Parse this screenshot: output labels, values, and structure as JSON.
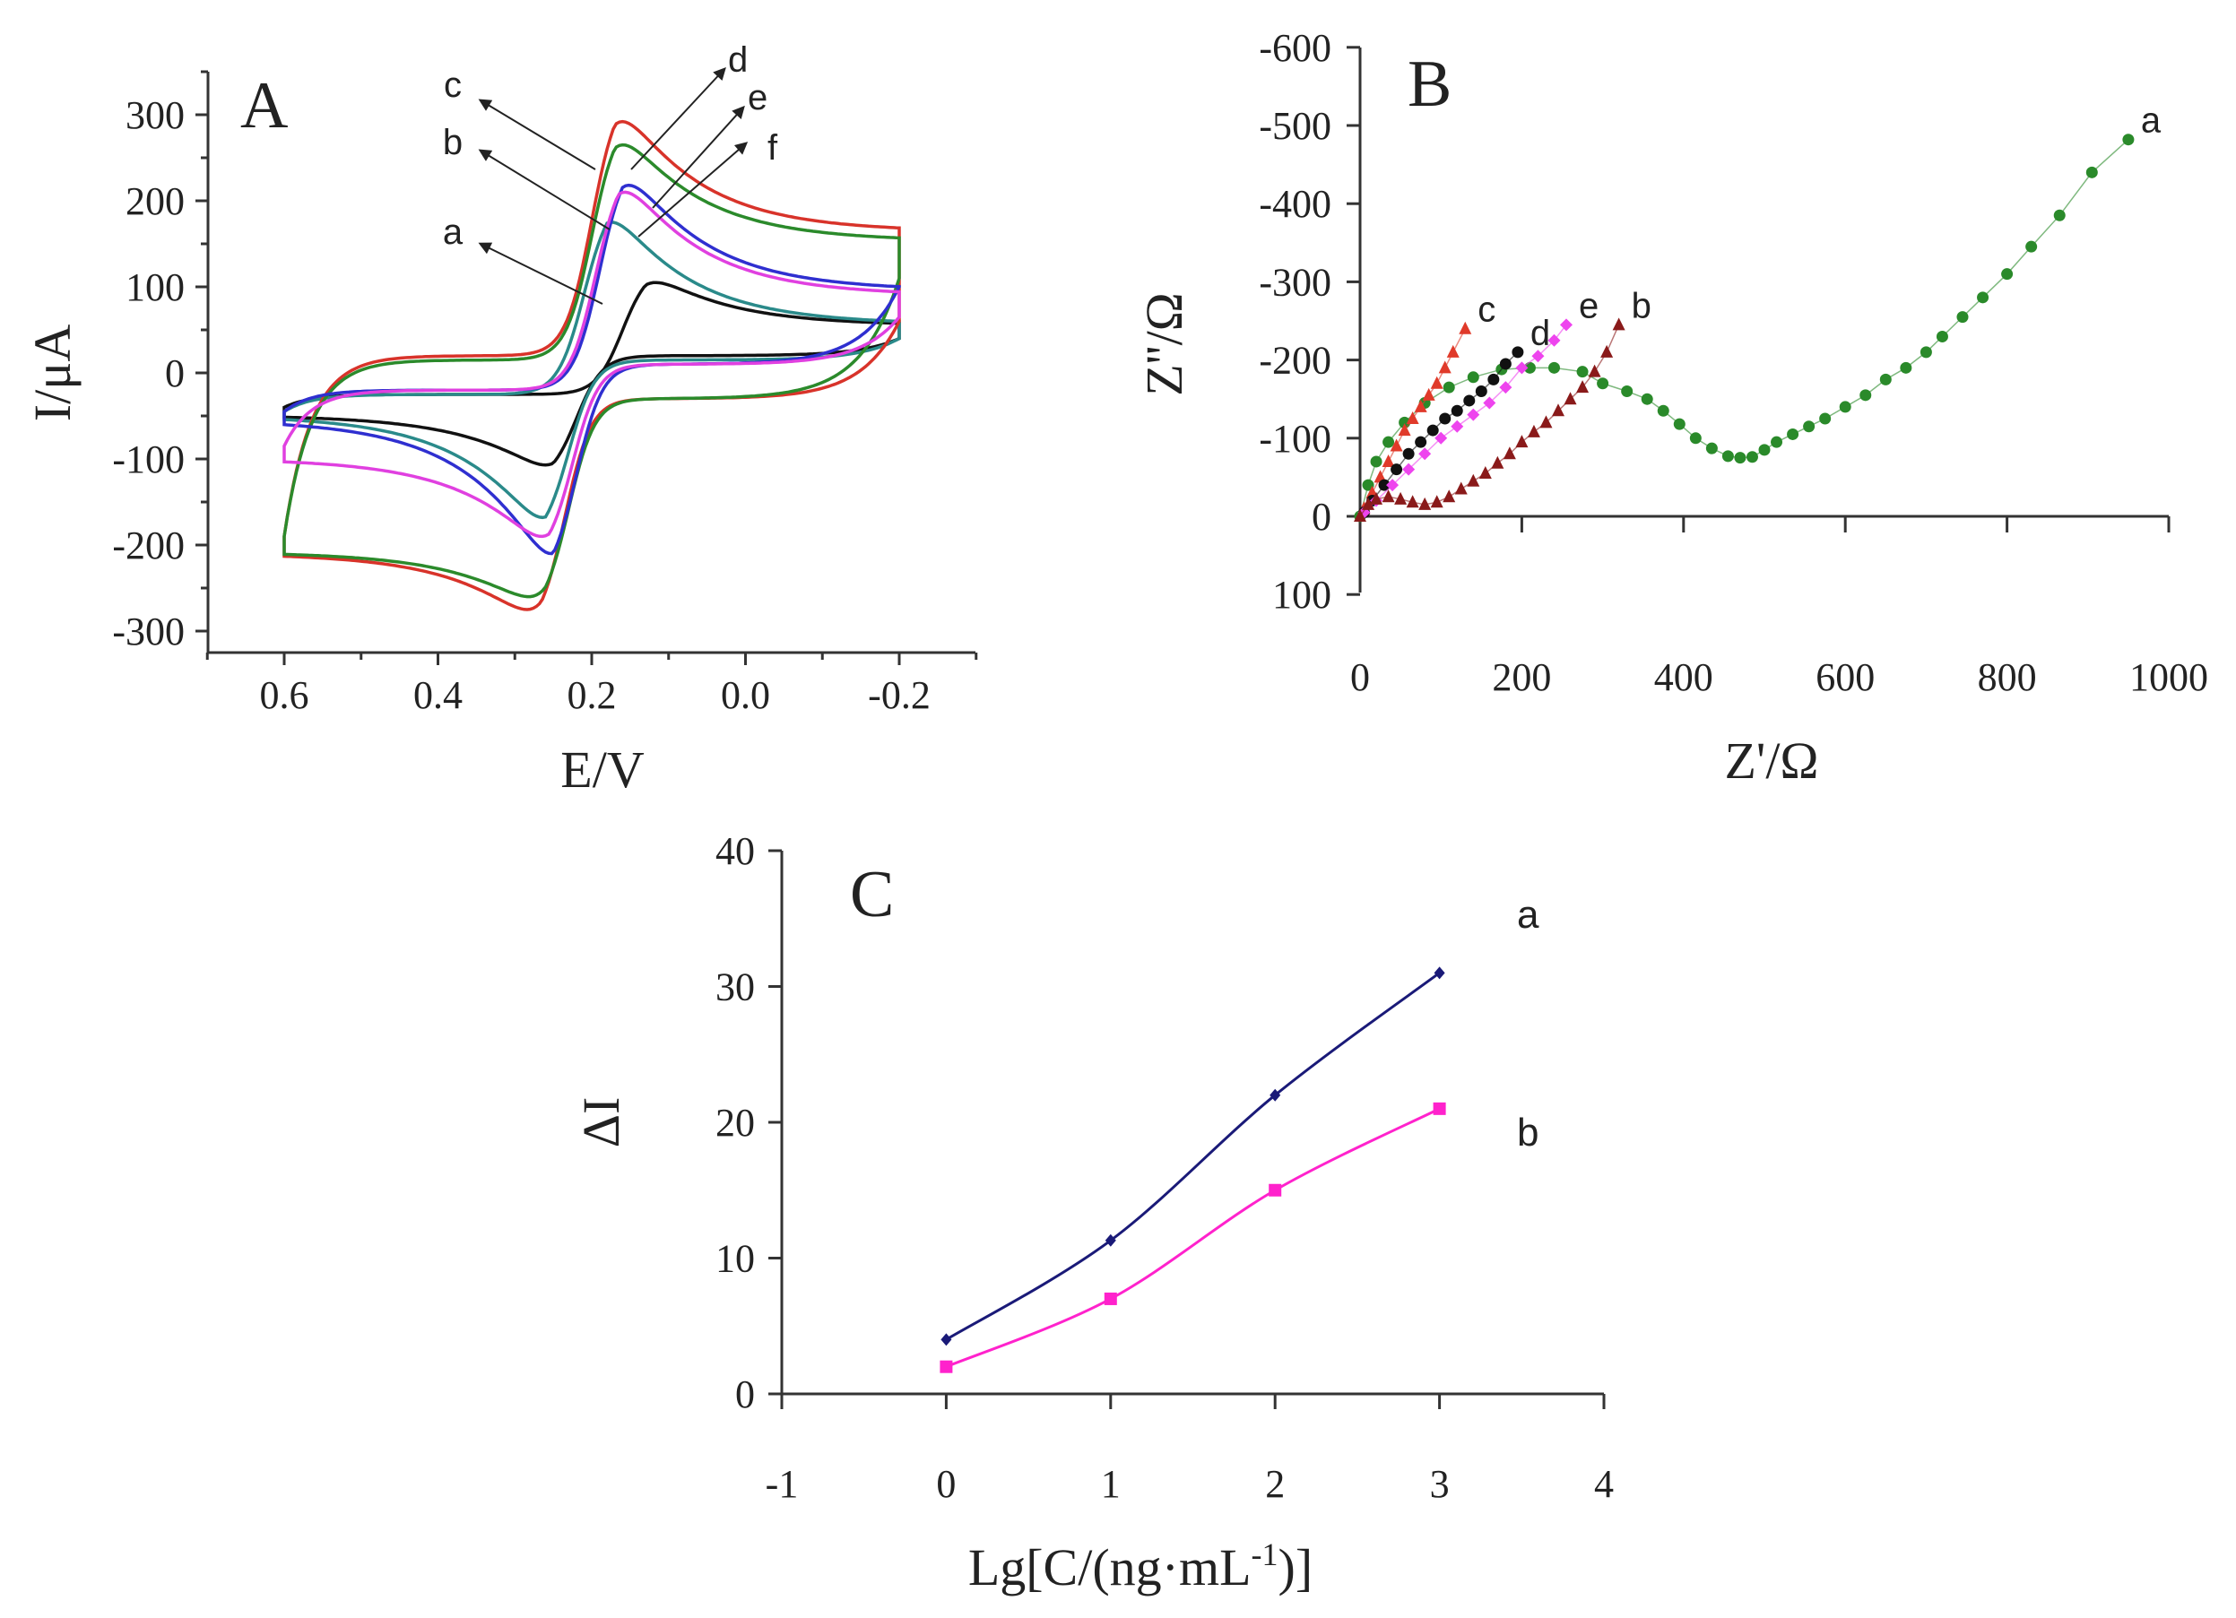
{
  "chart_data": [
    {
      "type": "line",
      "panel_label": "A",
      "title": "",
      "xlabel": "E/V",
      "ylabel": "I/μA",
      "xlim": [
        0.7,
        -0.3
      ],
      "ylim": [
        -325,
        350
      ],
      "xticks": [
        0.6,
        0.4,
        0.2,
        0.0,
        -0.2
      ],
      "xtick_labels": [
        "0.6",
        "0.4",
        "0.2",
        "0.0",
        "-0.2"
      ],
      "yticks": [
        300,
        200,
        100,
        0,
        -100,
        -200,
        -300
      ],
      "ytick_labels": [
        "300",
        "200",
        "100",
        "0",
        "-100",
        "-200",
        "-300"
      ],
      "grid": false,
      "series": [
        {
          "name": "a",
          "color": "#111111",
          "E_start": 0.6,
          "E_end": -0.2,
          "start_upper": -40,
          "plateau_upper": -25,
          "anodic_peak_E": 0.13,
          "anodic_peak_I": 105,
          "end_upper": 45,
          "end_lower": 40,
          "plateau_lower": 20,
          "cathodic_peak_E": 0.25,
          "cathodic_peak_I": -107,
          "start_lower": -40
        },
        {
          "name": "b",
          "color": "#2a8a8a",
          "E_start": 0.6,
          "E_end": -0.2,
          "start_upper": -45,
          "plateau_upper": -25,
          "anodic_peak_E": 0.18,
          "anodic_peak_I": 175,
          "end_upper": 45,
          "end_lower": 40,
          "plateau_lower": 15,
          "cathodic_peak_E": 0.26,
          "cathodic_peak_I": -168,
          "start_lower": -40
        },
        {
          "name": "c",
          "color": "#d8332a",
          "E_start": 0.6,
          "E_end": -0.2,
          "start_upper": -190,
          "plateau_upper": 20,
          "anodic_peak_E": 0.17,
          "anodic_peak_I": 292,
          "end_upper": 145,
          "end_lower": 60,
          "plateau_lower": -30,
          "cathodic_peak_E": 0.265,
          "cathodic_peak_I": -275,
          "start_lower": -190
        },
        {
          "name": "d",
          "color": "#2b8a2b",
          "E_start": 0.6,
          "E_end": -0.2,
          "start_upper": -190,
          "plateau_upper": 15,
          "anodic_peak_E": 0.17,
          "anodic_peak_I": 265,
          "end_upper": 135,
          "end_lower": 110,
          "plateau_lower": -30,
          "cathodic_peak_E": 0.26,
          "cathodic_peak_I": -260,
          "start_lower": -190
        },
        {
          "name": "e",
          "color": "#2f2fd0",
          "E_start": 0.6,
          "E_end": -0.2,
          "start_upper": -45,
          "plateau_upper": -20,
          "anodic_peak_E": 0.16,
          "anodic_peak_I": 218,
          "end_upper": 80,
          "end_lower": 100,
          "plateau_lower": 10,
          "cathodic_peak_E": 0.25,
          "cathodic_peak_I": -210,
          "start_lower": -45
        },
        {
          "name": "f",
          "color": "#e040e0",
          "E_start": 0.6,
          "E_end": -0.2,
          "start_upper": -85,
          "plateau_upper": -20,
          "anodic_peak_E": 0.165,
          "anodic_peak_I": 210,
          "end_upper": 75,
          "end_lower": 65,
          "plateau_lower": 10,
          "cathodic_peak_E": 0.255,
          "cathodic_peak_I": -190,
          "start_lower": -85
        }
      ]
    },
    {
      "type": "scatter",
      "panel_label": "B",
      "title": "",
      "xlabel": "Z'/Ω",
      "ylabel": "Z''/Ω",
      "xlim": [
        0,
        1000
      ],
      "ylim": [
        100,
        -600
      ],
      "xticks": [
        0,
        200,
        400,
        600,
        800,
        1000
      ],
      "xtick_labels": [
        "0",
        "200",
        "400",
        "600",
        "800",
        "1000"
      ],
      "yticks": [
        -600,
        -500,
        -400,
        -300,
        -200,
        -100,
        0,
        100
      ],
      "ytick_labels": [
        "-600",
        "-500",
        "-400",
        "-300",
        "-200",
        "-100",
        "0",
        "100"
      ],
      "grid": false,
      "series": [
        {
          "name": "a",
          "color": "#2a8a2a",
          "marker": "circle",
          "points": [
            [
              0,
              0
            ],
            [
              10,
              -40
            ],
            [
              20,
              -70
            ],
            [
              35,
              -95
            ],
            [
              55,
              -120
            ],
            [
              80,
              -145
            ],
            [
              110,
              -165
            ],
            [
              140,
              -178
            ],
            [
              175,
              -188
            ],
            [
              210,
              -190
            ],
            [
              240,
              -190
            ],
            [
              275,
              -185
            ],
            [
              300,
              -170
            ],
            [
              330,
              -160
            ],
            [
              355,
              -150
            ],
            [
              375,
              -135
            ],
            [
              395,
              -118
            ],
            [
              415,
              -100
            ],
            [
              435,
              -87
            ],
            [
              455,
              -77
            ],
            [
              470,
              -75
            ],
            [
              485,
              -76
            ],
            [
              500,
              -85
            ],
            [
              515,
              -95
            ],
            [
              535,
              -105
            ],
            [
              555,
              -115
            ],
            [
              575,
              -125
            ],
            [
              600,
              -140
            ],
            [
              625,
              -155
            ],
            [
              650,
              -175
            ],
            [
              675,
              -190
            ],
            [
              700,
              -210
            ],
            [
              720,
              -230
            ],
            [
              745,
              -255
            ],
            [
              770,
              -280
            ],
            [
              800,
              -310
            ],
            [
              830,
              -345
            ],
            [
              865,
              -385
            ],
            [
              905,
              -440
            ],
            [
              950,
              -482
            ]
          ]
        },
        {
          "name": "c",
          "color": "#e03a2a",
          "marker": "triangle",
          "points": [
            [
              5,
              -10
            ],
            [
              15,
              -30
            ],
            [
              25,
              -50
            ],
            [
              35,
              -70
            ],
            [
              45,
              -90
            ],
            [
              55,
              -110
            ],
            [
              65,
              -125
            ],
            [
              75,
              -140
            ],
            [
              85,
              -155
            ],
            [
              95,
              -170
            ],
            [
              105,
              -190
            ],
            [
              115,
              -210
            ],
            [
              130,
              -240
            ]
          ]
        },
        {
          "name": "d",
          "color": "#111111",
          "marker": "circle",
          "points": [
            [
              5,
              -5
            ],
            [
              15,
              -20
            ],
            [
              30,
              -40
            ],
            [
              45,
              -60
            ],
            [
              60,
              -80
            ],
            [
              75,
              -95
            ],
            [
              90,
              -110
            ],
            [
              105,
              -125
            ],
            [
              120,
              -135
            ],
            [
              135,
              -148
            ],
            [
              150,
              -160
            ],
            [
              165,
              -175
            ],
            [
              180,
              -195
            ],
            [
              195,
              -210
            ]
          ]
        },
        {
          "name": "e",
          "color": "#ee44ee",
          "marker": "diamond",
          "points": [
            [
              5,
              -5
            ],
            [
              20,
              -20
            ],
            [
              40,
              -40
            ],
            [
              60,
              -60
            ],
            [
              80,
              -80
            ],
            [
              100,
              -100
            ],
            [
              120,
              -115
            ],
            [
              140,
              -130
            ],
            [
              160,
              -145
            ],
            [
              180,
              -165
            ],
            [
              200,
              -190
            ],
            [
              220,
              -205
            ],
            [
              240,
              -225
            ],
            [
              255,
              -245
            ]
          ]
        },
        {
          "name": "b",
          "color": "#8a1a1a",
          "marker": "triangle",
          "points": [
            [
              0,
              0
            ],
            [
              10,
              -15
            ],
            [
              20,
              -22
            ],
            [
              35,
              -25
            ],
            [
              50,
              -22
            ],
            [
              65,
              -18
            ],
            [
              80,
              -15
            ],
            [
              95,
              -18
            ],
            [
              110,
              -25
            ],
            [
              125,
              -35
            ],
            [
              140,
              -45
            ],
            [
              155,
              -55
            ],
            [
              170,
              -68
            ],
            [
              185,
              -80
            ],
            [
              200,
              -95
            ],
            [
              215,
              -108
            ],
            [
              230,
              -120
            ],
            [
              245,
              -135
            ],
            [
              260,
              -150
            ],
            [
              275,
              -165
            ],
            [
              290,
              -185
            ],
            [
              305,
              -210
            ],
            [
              320,
              -245
            ]
          ]
        }
      ]
    },
    {
      "type": "line",
      "panel_label": "C",
      "title": "",
      "xlabel": "Lg[C/(ng·mL",
      "xlabel_sup": "-1",
      "xlabel_tail": ")]",
      "ylabel": "ΔI",
      "xlim": [
        -1,
        4
      ],
      "ylim": [
        0,
        40
      ],
      "xticks": [
        -1,
        0,
        1,
        2,
        3,
        4
      ],
      "xtick_labels": [
        "-1",
        "0",
        "1",
        "2",
        "3",
        "4"
      ],
      "yticks": [
        0,
        10,
        20,
        30,
        40
      ],
      "ytick_labels": [
        "0",
        "10",
        "20",
        "30",
        "40"
      ],
      "grid": false,
      "series": [
        {
          "name": "a",
          "color": "#1a1a78",
          "marker": "diamond",
          "x": [
            0,
            1,
            2,
            3
          ],
          "y": [
            4,
            11.3,
            22,
            31
          ]
        },
        {
          "name": "b",
          "color": "#ff22cc",
          "marker": "square",
          "x": [
            0,
            1,
            2,
            3
          ],
          "y": [
            2,
            7,
            15,
            21
          ]
        }
      ]
    }
  ]
}
